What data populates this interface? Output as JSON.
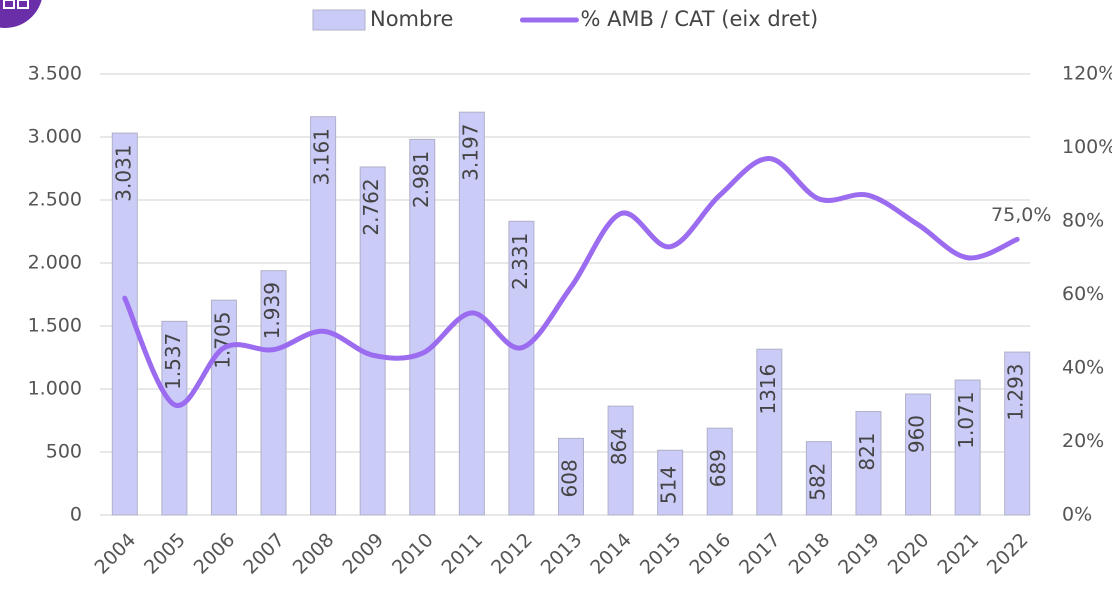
{
  "chart_data": {
    "type": "bar_line",
    "categories": [
      "2004",
      "2005",
      "2006",
      "2007",
      "2008",
      "2009",
      "2010",
      "2011",
      "2012",
      "2013",
      "2014",
      "2015",
      "2016",
      "2017",
      "2018",
      "2019",
      "2020",
      "2021",
      "2022"
    ],
    "series": [
      {
        "name": "Nombre",
        "type": "bar",
        "color": "#cbcbf8",
        "values": [
          3031,
          1537,
          1705,
          1939,
          3161,
          2762,
          2981,
          3197,
          2331,
          608,
          864,
          514,
          689,
          1316,
          582,
          821,
          960,
          1071,
          1293
        ],
        "value_labels": [
          "3.031",
          "1.537",
          "1.705",
          "1.939",
          "3.161",
          "2.762",
          "2.981",
          "3.197",
          "2.331",
          "608",
          "864",
          "514",
          "689",
          "1316",
          "582",
          "821",
          "960",
          "1.071",
          "1.293"
        ]
      },
      {
        "name": "% AMB / CAT (eix dret)",
        "type": "line",
        "axis": "y2",
        "color": "#9b6cf0",
        "values": [
          59,
          30,
          45.5,
          45,
          50,
          43.5,
          44,
          55,
          45.5,
          62,
          82,
          73,
          87,
          97,
          86,
          87,
          79,
          70,
          75
        ],
        "value_labels": [
          null,
          null,
          null,
          null,
          null,
          null,
          null,
          null,
          null,
          null,
          null,
          null,
          null,
          null,
          null,
          null,
          null,
          null,
          "75,0%"
        ]
      }
    ],
    "ylim": [
      0,
      3500
    ],
    "yticks": [
      0,
      500,
      {
        "value": 1000,
        "label": "1.000"
      },
      {
        "value": 1500,
        "label": "1.500"
      },
      {
        "value": 2000,
        "label": "2.000"
      },
      {
        "value": 2500,
        "label": "2.500"
      },
      {
        "value": 3000,
        "label": "3.000"
      },
      {
        "value": 3500,
        "label": "3.500"
      }
    ],
    "y2lim": [
      0,
      120
    ],
    "y2ticks": [
      {
        "value": 0,
        "label": "0%"
      },
      {
        "value": 20,
        "label": "20%"
      },
      {
        "value": 40,
        "label": "40%"
      },
      {
        "value": 60,
        "label": "60%"
      },
      {
        "value": 80,
        "label": "80%"
      },
      {
        "value": 100,
        "label": "100%"
      },
      {
        "value": 120,
        "label": "120%"
      }
    ],
    "grid": true,
    "legend": "top"
  }
}
